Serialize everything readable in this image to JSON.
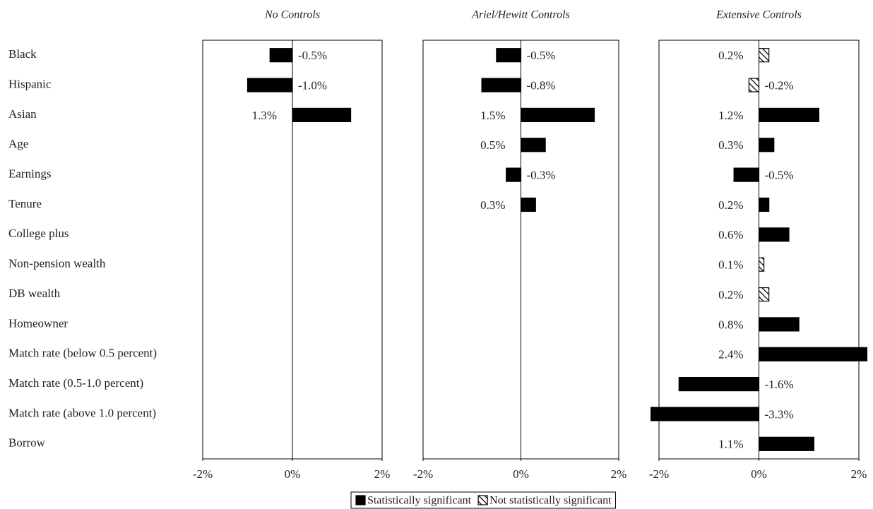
{
  "chart_data": {
    "type": "bar",
    "orientation": "horizontal",
    "color": "#000000",
    "categories": [
      "Black",
      "Hispanic",
      "Asian",
      "Age",
      "Earnings",
      "Tenure",
      "College plus",
      "Non-pension wealth",
      "DB wealth",
      "Homeowner",
      "Match rate (below 0.5 percent)",
      "Match rate (0.5-1.0 percent)",
      "Match rate (above 1.0 percent)",
      "Borrow"
    ],
    "panels": [
      {
        "title": "No Controls",
        "xlim": [
          -2,
          2
        ],
        "xticks": [
          {
            "value": -2,
            "label": "-2%"
          },
          {
            "value": 0,
            "label": "0%"
          },
          {
            "value": 2,
            "label": "2%"
          }
        ],
        "values": [
          -0.5,
          -1.0,
          1.3,
          null,
          null,
          null,
          null,
          null,
          null,
          null,
          null,
          null,
          null,
          null
        ],
        "value_labels": [
          "-0.5%",
          "-1.0%",
          "1.3%",
          null,
          null,
          null,
          null,
          null,
          null,
          null,
          null,
          null,
          null,
          null
        ],
        "significant": [
          true,
          true,
          true,
          null,
          null,
          null,
          null,
          null,
          null,
          null,
          null,
          null,
          null,
          null
        ]
      },
      {
        "title": "Ariel/Hewitt Controls",
        "xlim": [
          -2,
          2
        ],
        "xticks": [
          {
            "value": -2,
            "label": "-2%"
          },
          {
            "value": 0,
            "label": "0%"
          },
          {
            "value": 2,
            "label": "2%"
          }
        ],
        "values": [
          -0.5,
          -0.8,
          1.5,
          0.5,
          -0.3,
          0.3,
          null,
          null,
          null,
          null,
          null,
          null,
          null,
          null
        ],
        "value_labels": [
          "-0.5%",
          "-0.8%",
          "1.5%",
          "0.5%",
          "-0.3%",
          "0.3%",
          null,
          null,
          null,
          null,
          null,
          null,
          null,
          null
        ],
        "significant": [
          true,
          true,
          true,
          true,
          true,
          true,
          null,
          null,
          null,
          null,
          null,
          null,
          null,
          null
        ]
      },
      {
        "title": "Extensive Controls",
        "xlim": [
          -2,
          2
        ],
        "xticks": [
          {
            "value": -2,
            "label": "-2%"
          },
          {
            "value": 0,
            "label": "0%"
          },
          {
            "value": 2,
            "label": "2%"
          }
        ],
        "values": [
          0.2,
          -0.2,
          1.2,
          0.3,
          -0.5,
          0.2,
          0.6,
          0.1,
          0.2,
          0.8,
          2.4,
          -1.6,
          -3.3,
          1.1
        ],
        "value_labels": [
          "0.2%",
          "-0.2%",
          "1.2%",
          "0.3%",
          "-0.5%",
          "0.2%",
          "0.6%",
          "0.1%",
          "0.2%",
          "0.8%",
          "2.4%",
          "-1.6%",
          "-3.3%",
          "1.1%"
        ],
        "significant": [
          false,
          false,
          true,
          true,
          true,
          true,
          true,
          false,
          false,
          true,
          true,
          true,
          true,
          true
        ]
      }
    ],
    "legend": [
      {
        "label": "Statistically significant",
        "pattern": "solid"
      },
      {
        "label": "Not statistically significant",
        "pattern": "hatched"
      }
    ]
  }
}
